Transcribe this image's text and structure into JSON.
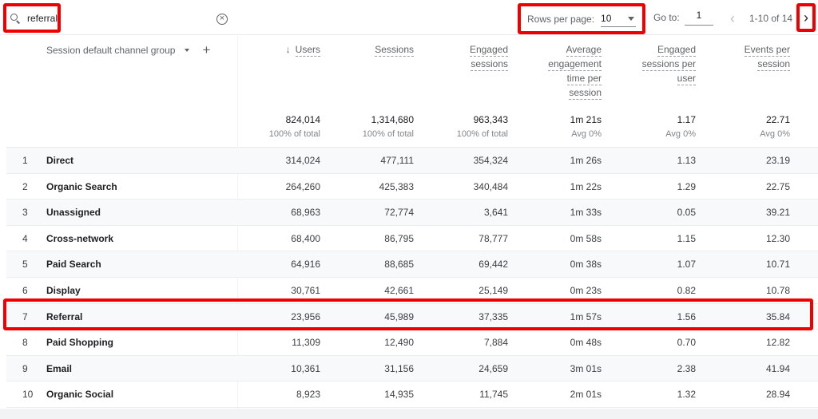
{
  "toolbar": {
    "search_value": "referral",
    "rows_per_page_label": "Rows per page:",
    "rows_per_page_value": "10",
    "goto_label": "Go to:",
    "goto_value": "1",
    "page_info": "1-10 of 14",
    "prev_icon": "‹",
    "next_icon": "›"
  },
  "dimension_header": "Session default channel group",
  "columns": [
    {
      "label_lines": [
        "Users"
      ],
      "sorted": true,
      "total": "824,014",
      "total_sub": "100% of total"
    },
    {
      "label_lines": [
        "Sessions"
      ],
      "total": "1,314,680",
      "total_sub": "100% of total"
    },
    {
      "label_lines": [
        "Engaged",
        "sessions"
      ],
      "total": "963,343",
      "total_sub": "100% of total"
    },
    {
      "label_lines": [
        "Average",
        "engagement",
        "time per",
        "session"
      ],
      "total": "1m 21s",
      "total_sub": "Avg 0%"
    },
    {
      "label_lines": [
        "Engaged",
        "sessions per",
        "user"
      ],
      "total": "1.17",
      "total_sub": "Avg 0%"
    },
    {
      "label_lines": [
        "Events per",
        "session"
      ],
      "total": "22.71",
      "total_sub": "Avg 0%"
    }
  ],
  "rows": [
    {
      "idx": "1",
      "name": "Direct",
      "values": [
        "314,024",
        "477,111",
        "354,324",
        "1m 26s",
        "1.13",
        "23.19"
      ]
    },
    {
      "idx": "2",
      "name": "Organic Search",
      "values": [
        "264,260",
        "425,383",
        "340,484",
        "1m 22s",
        "1.29",
        "22.75"
      ]
    },
    {
      "idx": "3",
      "name": "Unassigned",
      "values": [
        "68,963",
        "72,774",
        "3,641",
        "1m 33s",
        "0.05",
        "39.21"
      ]
    },
    {
      "idx": "4",
      "name": "Cross-network",
      "values": [
        "68,400",
        "86,795",
        "78,777",
        "0m 58s",
        "1.15",
        "12.30"
      ]
    },
    {
      "idx": "5",
      "name": "Paid Search",
      "values": [
        "64,916",
        "88,685",
        "69,442",
        "0m 38s",
        "1.07",
        "10.71"
      ]
    },
    {
      "idx": "6",
      "name": "Display",
      "values": [
        "30,761",
        "42,661",
        "25,149",
        "0m 23s",
        "0.82",
        "10.78"
      ]
    },
    {
      "idx": "7",
      "name": "Referral",
      "values": [
        "23,956",
        "45,989",
        "37,335",
        "1m 57s",
        "1.56",
        "35.84"
      ]
    },
    {
      "idx": "8",
      "name": "Paid Shopping",
      "values": [
        "11,309",
        "12,490",
        "7,884",
        "0m 48s",
        "0.70",
        "12.82"
      ]
    },
    {
      "idx": "9",
      "name": "Email",
      "values": [
        "10,361",
        "31,156",
        "24,659",
        "3m 01s",
        "2.38",
        "41.94"
      ]
    },
    {
      "idx": "10",
      "name": "Organic Social",
      "values": [
        "8,923",
        "14,935",
        "11,745",
        "2m 01s",
        "1.32",
        "28.94"
      ]
    }
  ],
  "highlight": {
    "row_index": 7,
    "color": "#ee0000"
  }
}
